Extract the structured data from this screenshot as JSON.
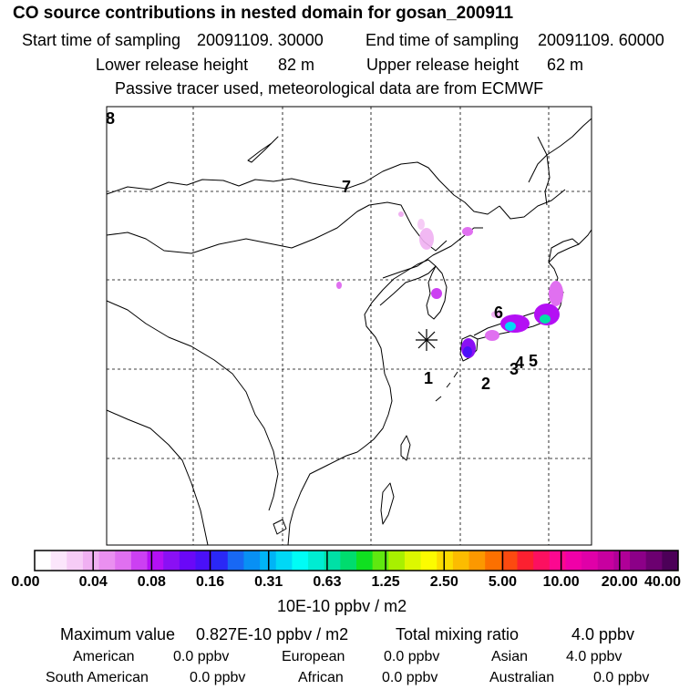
{
  "header": {
    "title": "CO  source contributions in nested domain for gosan_200911",
    "start_label": "Start time of sampling",
    "start_value": "20091109. 30000",
    "end_label": "End time of sampling",
    "end_value": "20091109. 60000",
    "lower_label": "Lower release height",
    "lower_value": "82 m",
    "upper_label": "Upper release height",
    "upper_value": "62 m",
    "note": "Passive tracer used, meteorological data are from ECMWF"
  },
  "map": {
    "station_marker": "asterisk-icon",
    "trajectory_labels": [
      "1",
      "2",
      "3",
      "4",
      "5",
      "6",
      "7",
      "8"
    ]
  },
  "colorbar": {
    "colors": [
      "#ffffff",
      "#fbe6fb",
      "#f6ccf6",
      "#f0b0f2",
      "#ea90f0",
      "#e070f0",
      "#cc40f2",
      "#b410f4",
      "#8a10f4",
      "#6a08f8",
      "#4a10f8",
      "#2a28f6",
      "#1868f4",
      "#0890f4",
      "#00b4f6",
      "#00d8f6",
      "#00fcf6",
      "#00ecd2",
      "#00e0a6",
      "#00dc6e",
      "#10e020",
      "#60e810",
      "#a8f000",
      "#dcf800",
      "#fcfc00",
      "#fcdc00",
      "#fcbc00",
      "#fc9800",
      "#fc7000",
      "#fc4a10",
      "#fc2030",
      "#fc1060",
      "#fc0890",
      "#f000a8",
      "#e000a8",
      "#c800a0",
      "#b00098",
      "#8c0088",
      "#6c0070",
      "#4c0058"
    ],
    "tick_labels": [
      "0.00",
      "0.04",
      "0.08",
      "0.16",
      "0.31",
      "0.63",
      "1.25",
      "2.50",
      "5.00",
      "10.00",
      "20.00",
      "40.00"
    ],
    "unit": "10E-10 ppbv / m2"
  },
  "summary": {
    "max_label": "Maximum value",
    "max_value": "0.827E-10 ppbv / m2",
    "total_label": "Total mixing ratio",
    "total_value": "4.0 ppbv",
    "contributions": [
      {
        "name": "American",
        "value": "0.0 ppbv"
      },
      {
        "name": "European",
        "value": "0.0 ppbv"
      },
      {
        "name": "Asian",
        "value": "4.0 ppbv"
      },
      {
        "name": "South American",
        "value": "0.0 ppbv"
      },
      {
        "name": "African",
        "value": "0.0 ppbv"
      },
      {
        "name": "Australian",
        "value": "0.0 ppbv"
      }
    ]
  }
}
